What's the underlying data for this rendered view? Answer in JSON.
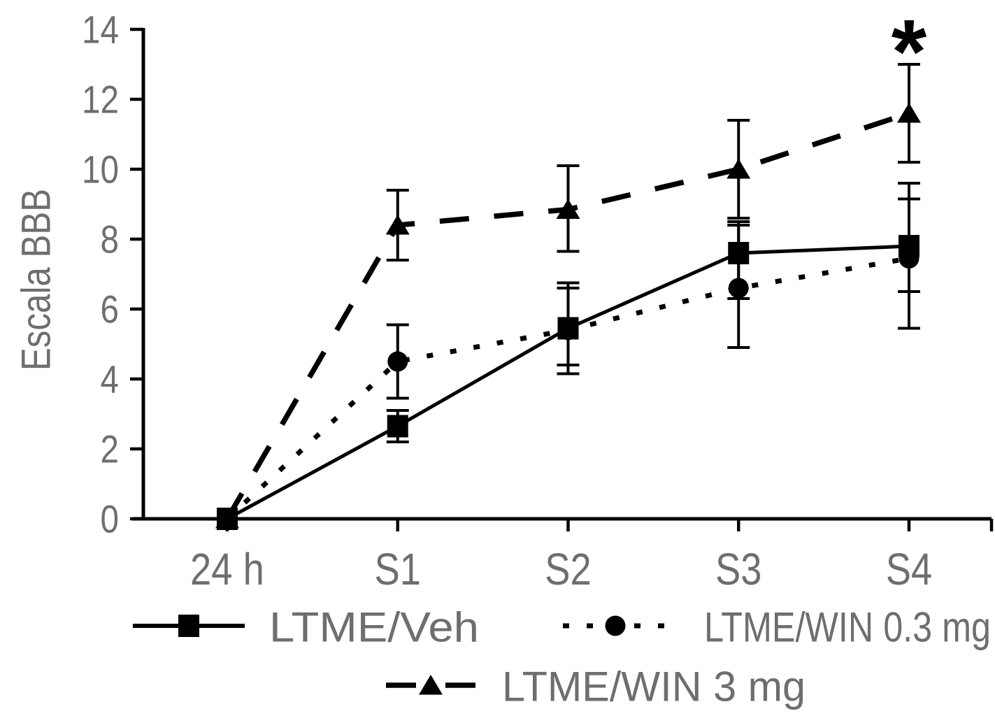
{
  "figure": {
    "background_color": "#ffffff",
    "text_color": "#6e6e6e",
    "line_color": "#000000"
  },
  "chart_data": {
    "type": "line",
    "title": "",
    "xlabel": "",
    "ylabel": "Escala BBB",
    "categories": [
      "24 h",
      "S1",
      "S2",
      "S3",
      "S4"
    ],
    "ylim": [
      0,
      14
    ],
    "yticks": [
      0,
      2,
      4,
      6,
      8,
      10,
      12,
      14
    ],
    "grid": false,
    "legend_position": "bottom",
    "error_bars": true,
    "series": [
      {
        "name": "LTME/Veh",
        "marker": "square",
        "line_style": "solid",
        "color": "#000000",
        "values": [
          0,
          2.65,
          5.45,
          7.6,
          7.8
        ],
        "err_hi": [
          0,
          0.45,
          1.3,
          0.9,
          1.8
        ],
        "err_lo": [
          0,
          0.45,
          1.3,
          1.3,
          1.3
        ]
      },
      {
        "name": "LTME/WIN 0.3 mg",
        "marker": "circle",
        "line_style": "dotted",
        "color": "#000000",
        "values": [
          0,
          4.5,
          5.4,
          6.6,
          7.45
        ],
        "err_hi": [
          0,
          1.05,
          1.2,
          1.8,
          1.7
        ],
        "err_lo": [
          0,
          1.05,
          1.0,
          1.7,
          2.0
        ]
      },
      {
        "name": "LTME/WIN 3 mg",
        "marker": "triangle",
        "line_style": "dashed",
        "color": "#000000",
        "values": [
          0,
          8.4,
          8.85,
          10.0,
          11.6
        ],
        "err_hi": [
          0,
          1.0,
          1.25,
          1.4,
          1.4
        ],
        "err_lo": [
          0,
          1.0,
          1.2,
          1.4,
          1.4
        ]
      }
    ],
    "annotations": [
      {
        "text": "*",
        "x_category": "S4",
        "y_value": 13.9,
        "refers_to_series": "LTME/WIN 3 mg"
      }
    ]
  }
}
